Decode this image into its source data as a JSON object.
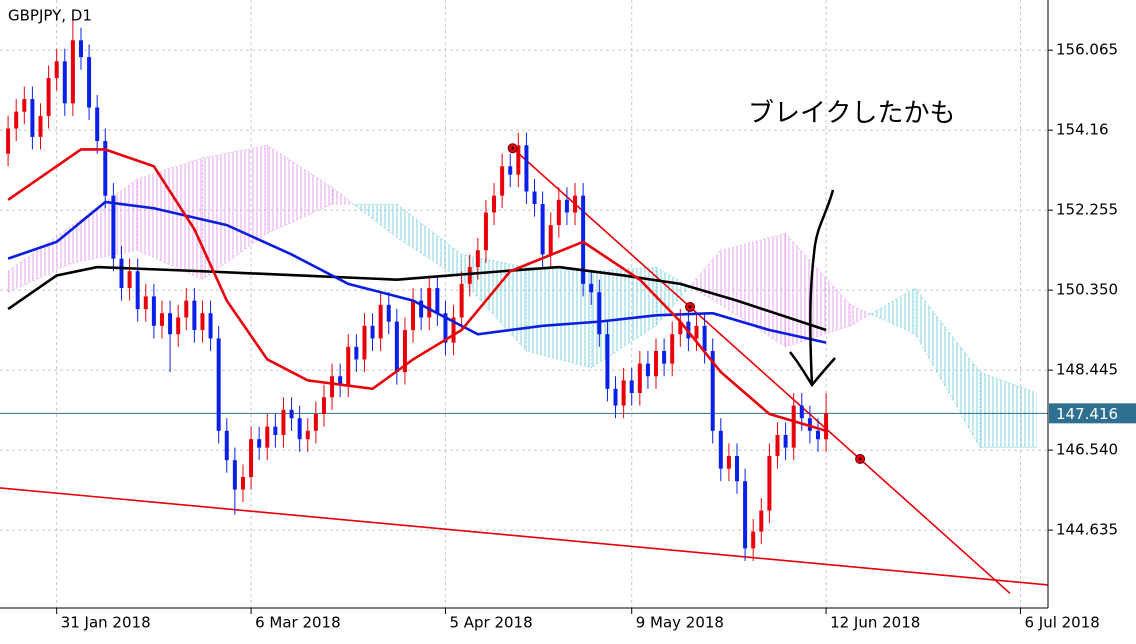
{
  "chart_data": {
    "type": "candlestick",
    "title": "GBPJPY, D1",
    "annotation": "ブレイクしたかも",
    "xlim": [
      -1,
      128.4
    ],
    "ylim": [
      142.78,
      157.26
    ],
    "yticks": [
      156.065,
      154.16,
      152.255,
      {
        "value": 150.35,
        "label": "150.350"
      },
      148.445,
      {
        "value": 146.54,
        "label": "146.540"
      },
      144.635
    ],
    "xticks": [
      {
        "value": 6,
        "label": "31 Jan 2018"
      },
      {
        "value": 30,
        "label": "6 Mar 2018"
      },
      {
        "value": 54,
        "label": "5 Apr 2018"
      },
      {
        "value": 77,
        "label": "9 May 2018"
      },
      {
        "value": 101,
        "label": "12 Jun 2018"
      },
      {
        "value": 125,
        "label": "6 Jul 2018"
      }
    ],
    "grid": true,
    "up_color": "#e8000b",
    "down_color": "#0a1fe8",
    "current_price": 147.416,
    "current_price_color": "#2f6f8f",
    "candles": {
      "open": [
        153.6,
        154.2,
        154.6,
        154.9,
        154.0,
        154.5,
        155.4,
        155.8,
        154.8,
        156.3,
        155.9,
        154.7,
        153.9,
        152.6,
        151.1,
        150.4,
        150.8,
        149.9,
        150.2,
        149.5,
        149.8,
        149.3,
        149.7,
        150.1,
        149.4,
        149.8,
        149.2,
        147.0,
        146.3,
        145.6,
        145.9,
        146.8,
        146.6,
        147.1,
        146.9,
        147.5,
        147.3,
        146.8,
        147.0,
        147.4,
        147.8,
        148.3,
        148.1,
        149.0,
        148.7,
        149.5,
        149.2,
        150.0,
        149.6,
        148.4,
        149.4,
        150.1,
        149.7,
        150.4,
        149.8,
        149.1,
        149.7,
        150.5,
        150.9,
        151.3,
        152.2,
        152.6,
        153.3,
        153.1,
        153.8,
        152.7,
        152.4,
        151.2,
        151.9,
        152.5,
        152.2,
        152.6,
        150.5,
        150.3,
        149.3,
        148.0,
        147.6,
        148.2,
        147.9,
        148.6,
        148.3,
        148.9,
        148.6,
        149.3,
        149.6,
        149.2,
        149.5,
        148.9,
        147.0,
        146.1,
        146.4,
        145.8,
        144.2,
        144.6,
        145.1,
        146.4,
        146.9,
        146.6,
        147.6,
        147.3,
        147.0,
        146.8
      ],
      "high": [
        154.5,
        154.9,
        155.2,
        155.2,
        154.8,
        155.7,
        156.1,
        156.1,
        156.9,
        156.6,
        156.2,
        155.0,
        154.2,
        152.9,
        151.4,
        151.1,
        151.1,
        150.5,
        150.5,
        150.1,
        150.1,
        150.0,
        150.4,
        150.4,
        150.1,
        150.1,
        149.5,
        147.3,
        146.6,
        146.2,
        147.1,
        147.1,
        147.4,
        147.4,
        147.8,
        147.8,
        147.6,
        147.3,
        147.7,
        148.1,
        148.6,
        148.6,
        149.3,
        149.3,
        149.8,
        149.8,
        150.3,
        150.3,
        149.9,
        149.7,
        150.4,
        150.4,
        150.7,
        150.7,
        150.1,
        150.0,
        150.8,
        151.2,
        151.6,
        152.5,
        152.9,
        153.6,
        153.6,
        154.1,
        154.1,
        153.0,
        152.7,
        152.2,
        152.8,
        152.8,
        152.9,
        152.9,
        150.8,
        150.6,
        149.6,
        148.3,
        148.5,
        148.5,
        148.9,
        148.9,
        149.2,
        149.2,
        149.6,
        149.9,
        149.9,
        149.8,
        149.8,
        149.2,
        147.3,
        146.7,
        146.7,
        146.1,
        144.9,
        145.4,
        146.7,
        147.2,
        147.2,
        147.9,
        147.9,
        147.6,
        147.3,
        147.9
      ],
      "low": [
        153.3,
        153.9,
        154.3,
        153.7,
        153.7,
        154.2,
        155.1,
        154.5,
        154.5,
        155.6,
        154.4,
        153.6,
        152.3,
        150.8,
        150.1,
        150.1,
        149.6,
        149.6,
        149.2,
        149.2,
        148.4,
        149.0,
        149.4,
        149.1,
        149.1,
        148.9,
        146.7,
        146.0,
        145.0,
        145.3,
        145.6,
        146.3,
        146.3,
        146.6,
        146.6,
        147.0,
        146.5,
        146.5,
        146.7,
        147.1,
        147.5,
        147.8,
        147.8,
        148.4,
        148.4,
        148.9,
        148.9,
        149.3,
        148.1,
        148.1,
        149.1,
        149.4,
        149.4,
        149.5,
        148.8,
        148.8,
        149.4,
        150.2,
        150.6,
        151.0,
        151.9,
        152.3,
        152.8,
        152.8,
        152.4,
        152.1,
        150.9,
        150.9,
        151.6,
        151.9,
        151.9,
        150.2,
        150.0,
        149.0,
        147.7,
        147.3,
        147.3,
        147.6,
        147.6,
        148.0,
        148.0,
        148.3,
        148.3,
        149.0,
        148.9,
        148.9,
        148.6,
        146.7,
        145.8,
        145.8,
        145.5,
        143.9,
        143.9,
        144.3,
        144.8,
        146.1,
        146.3,
        146.3,
        147.0,
        146.7,
        146.5,
        146.5
      ],
      "close": [
        154.2,
        154.6,
        154.9,
        154.0,
        154.5,
        155.4,
        155.8,
        154.8,
        156.3,
        155.9,
        154.7,
        153.9,
        152.6,
        151.1,
        150.4,
        150.8,
        149.9,
        150.2,
        149.5,
        149.8,
        149.3,
        149.7,
        150.1,
        149.4,
        149.8,
        149.2,
        147.0,
        146.3,
        145.6,
        145.9,
        146.8,
        146.6,
        147.1,
        146.9,
        147.5,
        147.3,
        146.8,
        147.0,
        147.4,
        147.8,
        148.3,
        148.1,
        149.0,
        148.7,
        149.5,
        149.2,
        150.0,
        149.6,
        148.4,
        149.4,
        150.1,
        149.7,
        150.4,
        149.8,
        149.1,
        149.7,
        150.5,
        150.9,
        151.3,
        152.2,
        152.6,
        153.3,
        153.1,
        153.8,
        152.7,
        152.4,
        151.2,
        151.9,
        152.5,
        152.2,
        152.6,
        150.5,
        150.3,
        149.3,
        148.0,
        147.6,
        148.2,
        147.9,
        148.6,
        148.3,
        148.9,
        148.6,
        149.3,
        149.6,
        149.2,
        149.5,
        148.9,
        147.0,
        146.1,
        146.4,
        145.8,
        144.2,
        144.6,
        145.1,
        146.4,
        146.9,
        146.6,
        147.6,
        147.3,
        147.0,
        146.8,
        147.416
      ]
    },
    "cloud": {
      "colors": [
        "#e7a2ee",
        "#7dd3df"
      ],
      "x": [
        0,
        8,
        16,
        24,
        32,
        40,
        48,
        56,
        64,
        72,
        80,
        88,
        96,
        104,
        112,
        120,
        127
      ],
      "span_a": [
        150.3,
        151.0,
        151.3,
        150.6,
        151.7,
        152.4,
        152.4,
        151.2,
        150.9,
        150.8,
        150.9,
        150.0,
        149.0,
        149.5,
        150.4,
        148.4,
        147.9
      ],
      "span_b": [
        150.8,
        151.9,
        153.0,
        153.5,
        153.8,
        152.8,
        151.6,
        150.6,
        148.9,
        148.5,
        149.5,
        151.3,
        151.7,
        150.0,
        149.3,
        146.6,
        146.6
      ]
    },
    "moving_averages": [
      {
        "color": "#000000",
        "x": [
          0,
          6,
          11,
          24,
          36,
          48,
          61,
          68,
          76,
          83,
          90,
          101
        ],
        "values": [
          149.9,
          150.7,
          150.9,
          150.8,
          150.7,
          150.6,
          150.8,
          150.9,
          150.7,
          150.5,
          150.1,
          149.4
        ]
      },
      {
        "color": "#0b1ee0",
        "x": [
          0,
          6,
          12,
          18,
          27,
          35,
          42,
          50,
          58,
          66,
          73,
          80,
          87,
          94,
          101
        ],
        "values": [
          151.1,
          151.5,
          152.45,
          152.3,
          151.9,
          151.2,
          150.5,
          150.1,
          149.3,
          149.5,
          149.6,
          149.75,
          149.8,
          149.4,
          149.1
        ]
      },
      {
        "color": "#e8000b",
        "x": [
          0,
          9,
          12,
          18,
          23,
          27,
          32,
          37,
          45,
          50,
          56,
          62,
          71,
          78,
          83,
          88,
          94,
          101
        ],
        "values": [
          152.5,
          153.7,
          153.7,
          153.3,
          151.8,
          150.1,
          148.7,
          148.2,
          148.0,
          148.7,
          149.4,
          150.8,
          151.5,
          150.6,
          149.6,
          148.4,
          147.4,
          147.0
        ]
      }
    ],
    "trendlines": [
      {
        "color": "#e8000b",
        "x": [
          62.3,
          123.7
        ],
        "values": [
          153.73,
          143.13
        ]
      },
      {
        "color": "#e8000b",
        "x": [
          -1,
          128.4
        ],
        "values": [
          145.64,
          143.33
        ]
      }
    ],
    "anchors": {
      "color": "#e8000b",
      "x": [
        62.3,
        84.2,
        105.2
      ],
      "values": [
        153.73,
        149.95,
        146.33
      ]
    }
  }
}
